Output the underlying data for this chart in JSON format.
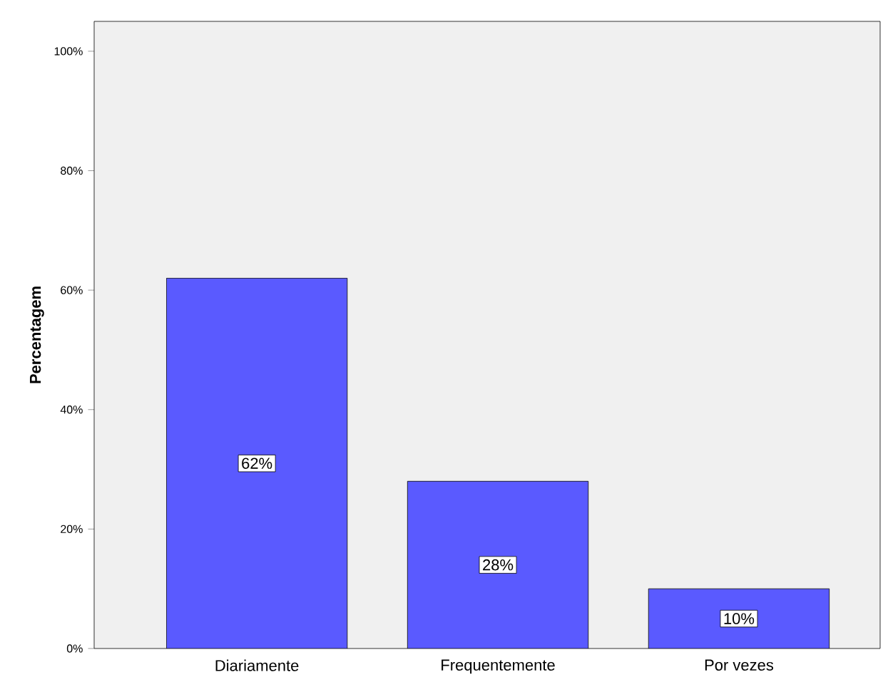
{
  "chart_data": {
    "type": "bar",
    "ylabel": "**Percentagem**",
    "categories": [
      "Diariamente",
      "Frequentemente",
      "Por vezes"
    ],
    "values": [
      62,
      28,
      10
    ],
    "value_labels": [
      "62%",
      "28%",
      "10%"
    ],
    "color": "#5a5aff",
    "ylim": [
      0,
      105
    ],
    "yticks": [
      {
        "value": 0,
        "label": "0%"
      },
      {
        "value": 20,
        "label": "20%"
      },
      {
        "value": 40,
        "label": "40%"
      },
      {
        "value": 60,
        "label": "60%"
      },
      {
        "value": 80,
        "label": "80%"
      },
      {
        "value": 100,
        "label": "100%"
      }
    ],
    "grid": false
  }
}
